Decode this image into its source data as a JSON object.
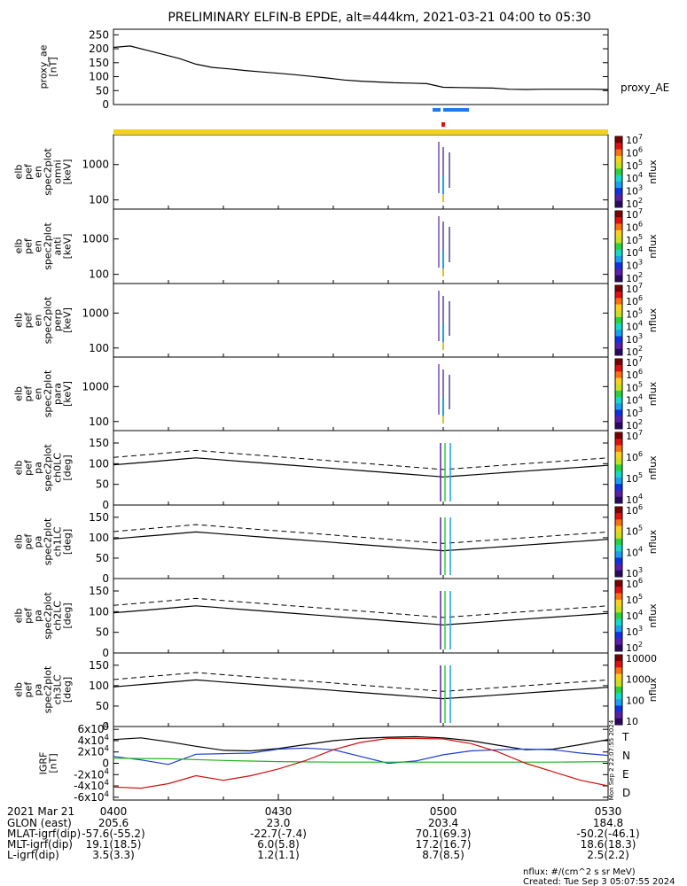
{
  "title": "PRELIMINARY ELFIN-B EPDE, alt=444km, 2021-03-21 04:00 to 05:30",
  "footer": {
    "line1": "nflux: #/(cm^2 s sr MeV)",
    "line2": "Created: Tue Sep  3 05:07:55 2024",
    "side_stamp": "Mon Sep  2 22:07:55 2024"
  },
  "chart_data": {
    "type": "line",
    "time_range": [
      "2021-03-21 04:00",
      "2021-03-21 05:30"
    ],
    "panels": [
      {
        "key": "ae",
        "ylabel": [
          "proxy_ae",
          "[nT]"
        ],
        "right_label": "proxy_AE",
        "ylim": [
          0,
          270
        ],
        "yticks": [
          0,
          50,
          100,
          150,
          200,
          250
        ],
        "series": [
          {
            "x_min": [
              0,
              3,
              6,
              9,
              12,
              15,
              18,
              21,
              24,
              27,
              30,
              33,
              36,
              39,
              42,
              45,
              48,
              51,
              54,
              57,
              60,
              63,
              66,
              69,
              72,
              75,
              78,
              81,
              84,
              87,
              90
            ],
            "values": [
              205,
              210,
              195,
              180,
              165,
              145,
              133,
              128,
              122,
              117,
              112,
              107,
              101,
              95,
              88,
              84,
              81,
              78,
              77,
              75,
              62,
              61,
              60,
              59,
              55,
              54,
              55,
              55,
              55,
              55,
              54
            ]
          }
        ]
      },
      {
        "key": "omni",
        "ylabel": [
          "elb",
          "pef",
          "en",
          "spec2plot",
          "omni",
          "[keV]"
        ],
        "scale": "log",
        "ylim": [
          55,
          7000
        ],
        "yticks": [
          100,
          1000
        ],
        "ytick_labels": [
          "100",
          "1000"
        ],
        "colorbar": {
          "label": "nflux",
          "ticks": [
            "10^2",
            "10^3",
            "10^4",
            "10^5",
            "10^6",
            "10^7"
          ]
        }
      },
      {
        "key": "anti",
        "ylabel": [
          "elb",
          "pef",
          "en",
          "spec2plot",
          "anti",
          "[keV]"
        ],
        "scale": "log",
        "ylim": [
          55,
          7000
        ],
        "yticks": [
          100,
          1000
        ],
        "ytick_labels": [
          "100",
          "1000"
        ],
        "colorbar": {
          "label": "nflux",
          "ticks": [
            "10^2",
            "10^3",
            "10^4",
            "10^5",
            "10^6",
            "10^7"
          ]
        }
      },
      {
        "key": "perp",
        "ylabel": [
          "elb",
          "pef",
          "en",
          "spec2plot",
          "perp",
          "[keV]"
        ],
        "scale": "log",
        "ylim": [
          55,
          7000
        ],
        "yticks": [
          100,
          1000
        ],
        "ytick_labels": [
          "100",
          "1000"
        ],
        "colorbar": {
          "label": "nflux",
          "ticks": [
            "10^2",
            "10^3",
            "10^4",
            "10^5",
            "10^6",
            "10^7"
          ]
        }
      },
      {
        "key": "para",
        "ylabel": [
          "elb",
          "pef",
          "en",
          "spec2plot",
          "para",
          "[keV]"
        ],
        "scale": "log",
        "ylim": [
          55,
          7000
        ],
        "yticks": [
          100,
          1000
        ],
        "ytick_labels": [
          "100",
          "1000"
        ],
        "colorbar": {
          "label": "nflux",
          "ticks": [
            "10^2",
            "10^3",
            "10^4",
            "10^5",
            "10^6",
            "10^7"
          ]
        }
      },
      {
        "key": "ch0",
        "ylabel": [
          "elb",
          "pef",
          "pa",
          "spec2plot",
          "ch0LC",
          "[deg]"
        ],
        "ylim": [
          0,
          180
        ],
        "yticks": [
          0,
          50,
          100,
          150
        ],
        "colorbar": {
          "label": "nflux",
          "ticks": [
            "10^4",
            "10^5",
            "10^6",
            "10^7"
          ]
        }
      },
      {
        "key": "ch1",
        "ylabel": [
          "elb",
          "pef",
          "pa",
          "spec2plot",
          "ch1LC",
          "[deg]"
        ],
        "ylim": [
          0,
          180
        ],
        "yticks": [
          0,
          50,
          100,
          150
        ],
        "colorbar": {
          "label": "nflux",
          "ticks": [
            "10^3",
            "10^4",
            "10^5",
            "10^6"
          ]
        }
      },
      {
        "key": "ch2",
        "ylabel": [
          "elb",
          "pef",
          "pa",
          "spec2plot",
          "ch2LC",
          "[deg]"
        ],
        "ylim": [
          0,
          180
        ],
        "yticks": [
          0,
          50,
          100,
          150
        ],
        "colorbar": {
          "label": "nflux",
          "ticks": [
            "10^2",
            "10^3",
            "10^4",
            "10^5",
            "10^6"
          ]
        }
      },
      {
        "key": "ch3",
        "ylabel": [
          "elb",
          "pef",
          "pa",
          "spec2plot",
          "ch3LC",
          "[deg]"
        ],
        "ylim": [
          0,
          180
        ],
        "yticks": [
          0,
          50,
          100,
          150
        ],
        "colorbar": {
          "label": "nflux",
          "ticks": [
            "10",
            "100",
            "1000",
            "10000"
          ]
        }
      },
      {
        "key": "igrf",
        "ylabel": [
          "IGRF",
          "[nT]"
        ],
        "ylim": [
          -65000,
          65000
        ],
        "yticks": [
          -60000,
          -40000,
          -20000,
          0,
          20000,
          40000,
          60000
        ],
        "ytick_labels": [
          "-6×10^4",
          "-4×10^4",
          "-2×10^4",
          "0",
          "2×10^4",
          "4×10^4",
          "6×10^4"
        ],
        "legend": [
          "T",
          "N",
          "E",
          "D"
        ],
        "series": [
          {
            "name": "T",
            "color": "#000000",
            "x_min": [
              0,
              5,
              10,
              15,
              20,
              25,
              30,
              35,
              40,
              45,
              50,
              55,
              60,
              65,
              70,
              75,
              80,
              85,
              90
            ],
            "values": [
              42000,
              45000,
              38000,
              30000,
              23000,
              22000,
              26000,
              33000,
              40000,
              44000,
              46000,
              47000,
              45000,
              40000,
              32000,
              24000,
              25000,
              33000,
              42000
            ]
          },
          {
            "name": "N",
            "color": "#1a3cd0",
            "x_min": [
              0,
              5,
              10,
              15,
              20,
              25,
              30,
              35,
              40,
              45,
              50,
              55,
              60,
              65,
              70,
              75,
              80,
              85,
              90
            ],
            "values": [
              12000,
              6000,
              -2000,
              16000,
              17000,
              18000,
              25000,
              27000,
              24000,
              12000,
              0,
              4000,
              15000,
              22000,
              24000,
              25000,
              24000,
              18000,
              14000
            ]
          },
          {
            "name": "E",
            "color": "#22b222",
            "x_min": [
              0,
              10,
              20,
              30,
              40,
              50,
              60,
              70,
              80,
              90
            ],
            "values": [
              9000,
              8000,
              5000,
              3000,
              2000,
              2000,
              2000,
              2000,
              2000,
              3000
            ]
          },
          {
            "name": "D",
            "color": "#d01010",
            "x_min": [
              0,
              5,
              10,
              15,
              20,
              25,
              30,
              35,
              40,
              45,
              50,
              55,
              60,
              65,
              70,
              75,
              80,
              85,
              90
            ],
            "values": [
              -42000,
              -44000,
              -36000,
              -22000,
              -30000,
              -22000,
              -10000,
              5000,
              24000,
              37000,
              44000,
              44000,
              43000,
              35000,
              20000,
              0,
              -15000,
              -30000,
              -40000
            ]
          }
        ]
      }
    ],
    "x_ticks": {
      "header": "2021 Mar 21",
      "labels": [
        "0400",
        "0430",
        "0500",
        "0530"
      ],
      "rows": [
        {
          "label": "GLON (east)",
          "values": [
            "205.6",
            "23.0",
            "203.4",
            "184.8"
          ]
        },
        {
          "label": "MLAT-igrf(dip)",
          "values": [
            "-57.6(-55.2)",
            "-22.7(-7.4)",
            "70.1(69.3)",
            "-50.2(-46.1)"
          ]
        },
        {
          "label": "MLT-igrf(dip)",
          "values": [
            "19.1(18.5)",
            "6.0(5.8)",
            "17.2(16.7)",
            "18.6(18.3)"
          ]
        },
        {
          "label": "L-igrf(dip)",
          "values": [
            "3.5(3.3)",
            "1.2(1.1)",
            "8.7(8.5)",
            "2.5(2.2)"
          ]
        }
      ]
    },
    "colors": {
      "status_bar": "#f2d21e",
      "science_blue": "#1e78f0",
      "marker_red": "#e01010"
    }
  }
}
